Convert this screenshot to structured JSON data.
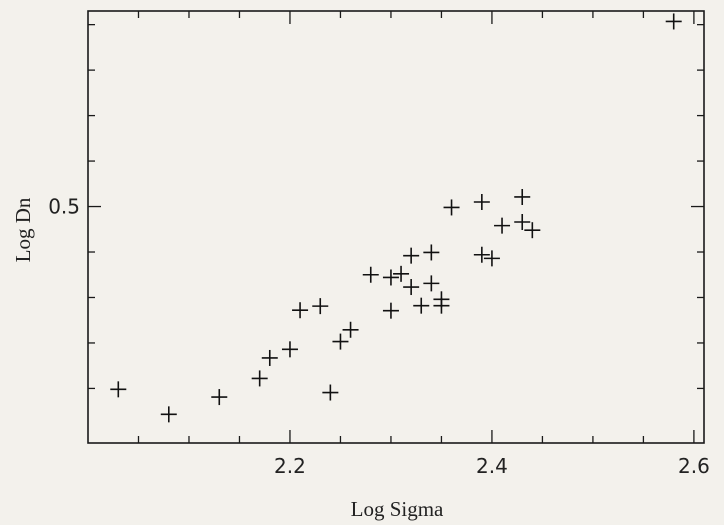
{
  "chart_data": {
    "type": "scatter",
    "marker": "plus",
    "xlabel": "Log Sigma",
    "ylabel": "Log Dn",
    "xlim": [
      2.0,
      2.61
    ],
    "ylim": [
      -0.02,
      0.93
    ],
    "xticks": [
      {
        "value": 2.2,
        "label": "2.2"
      },
      {
        "value": 2.4,
        "label": "2.4"
      },
      {
        "value": 2.6,
        "label": "2.6"
      }
    ],
    "yticks": [
      {
        "value": 0.5,
        "label": "0.5"
      }
    ],
    "xminor": [
      2.05,
      2.1,
      2.15,
      2.25,
      2.3,
      2.35,
      2.45,
      2.5,
      2.55
    ],
    "yminor": [
      0.1,
      0.2,
      0.3,
      0.4,
      0.6,
      0.7,
      0.8,
      0.9
    ],
    "grid": false,
    "points": [
      {
        "x": 2.03,
        "y": 0.098
      },
      {
        "x": 2.08,
        "y": 0.043
      },
      {
        "x": 2.13,
        "y": 0.081
      },
      {
        "x": 2.17,
        "y": 0.122
      },
      {
        "x": 2.18,
        "y": 0.167
      },
      {
        "x": 2.2,
        "y": 0.186
      },
      {
        "x": 2.21,
        "y": 0.272
      },
      {
        "x": 2.23,
        "y": 0.281
      },
      {
        "x": 2.24,
        "y": 0.091
      },
      {
        "x": 2.25,
        "y": 0.203
      },
      {
        "x": 2.26,
        "y": 0.229
      },
      {
        "x": 2.28,
        "y": 0.35
      },
      {
        "x": 2.3,
        "y": 0.344
      },
      {
        "x": 2.3,
        "y": 0.271
      },
      {
        "x": 2.31,
        "y": 0.352
      },
      {
        "x": 2.32,
        "y": 0.392
      },
      {
        "x": 2.32,
        "y": 0.323
      },
      {
        "x": 2.33,
        "y": 0.282
      },
      {
        "x": 2.34,
        "y": 0.399
      },
      {
        "x": 2.34,
        "y": 0.331
      },
      {
        "x": 2.35,
        "y": 0.296
      },
      {
        "x": 2.35,
        "y": 0.282
      },
      {
        "x": 2.36,
        "y": 0.498
      },
      {
        "x": 2.39,
        "y": 0.51
      },
      {
        "x": 2.39,
        "y": 0.394
      },
      {
        "x": 2.4,
        "y": 0.386
      },
      {
        "x": 2.41,
        "y": 0.458
      },
      {
        "x": 2.43,
        "y": 0.521
      },
      {
        "x": 2.43,
        "y": 0.466
      },
      {
        "x": 2.44,
        "y": 0.448
      },
      {
        "x": 2.58,
        "y": 0.907
      }
    ]
  }
}
